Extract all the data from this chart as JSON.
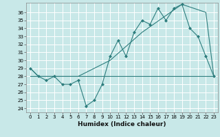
{
  "xlabel": "Humidex (Indice chaleur)",
  "bg_color": "#c8e8e8",
  "grid_color": "#ffffff",
  "line_color": "#2d7d7d",
  "xlim": [
    -0.5,
    23.5
  ],
  "ylim": [
    23.5,
    37.2
  ],
  "yticks": [
    24,
    25,
    26,
    27,
    28,
    29,
    30,
    31,
    32,
    33,
    34,
    35,
    36
  ],
  "xticks": [
    0,
    1,
    2,
    3,
    4,
    5,
    6,
    7,
    8,
    9,
    10,
    11,
    12,
    13,
    14,
    15,
    16,
    17,
    18,
    19,
    20,
    21,
    22,
    23
  ],
  "line1_x": [
    0,
    1,
    2,
    3,
    4,
    5,
    6,
    7,
    8,
    9,
    10,
    11,
    12,
    13,
    14,
    15,
    16,
    17,
    18,
    19,
    20,
    21,
    22,
    23
  ],
  "line1_y": [
    29.0,
    28.0,
    27.5,
    28.0,
    27.0,
    27.0,
    27.5,
    24.3,
    25.0,
    27.0,
    30.5,
    32.5,
    30.5,
    33.5,
    35.0,
    34.5,
    36.5,
    35.0,
    36.5,
    37.0,
    34.0,
    33.0,
    30.5,
    28.0
  ],
  "line2_x": [
    0,
    1,
    6,
    10,
    14,
    19,
    22,
    23
  ],
  "line2_y": [
    29.0,
    28.0,
    28.0,
    30.0,
    33.5,
    37.0,
    36.0,
    28.0
  ],
  "line3_x": [
    0,
    1,
    9,
    18,
    22,
    23
  ],
  "line3_y": [
    28.0,
    28.0,
    28.0,
    28.0,
    28.0,
    28.0
  ]
}
